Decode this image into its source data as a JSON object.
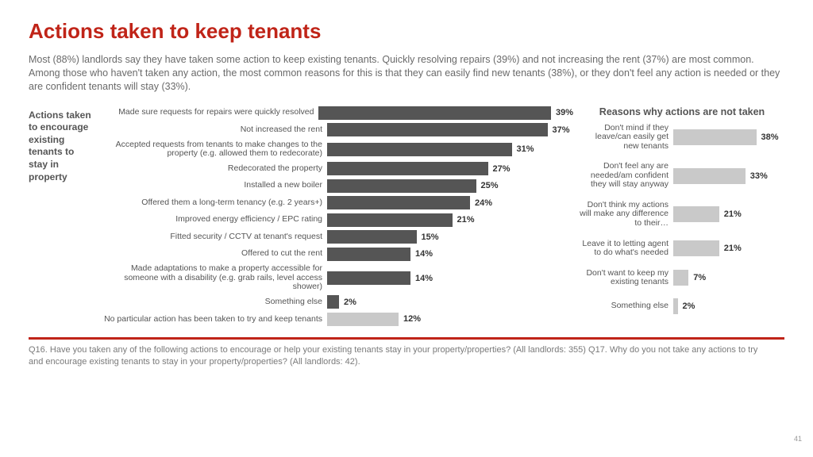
{
  "title": "Actions taken to keep tenants",
  "intro": "Most (88%) landlords say they have taken some action to keep existing tenants. Quickly resolving repairs (39%) and not increasing the rent (37%) are most common. Among those who haven't taken any action, the most common reasons for this is that they can easily find new tenants (38%), or they don't feel any action is needed or they are confident tenants will stay (33%).",
  "side_label": "Actions taken to encourage existing tenants to stay in property",
  "chart1": {
    "type": "bar-horizontal",
    "max": 40,
    "bar_color_dark": "#555555",
    "bar_color_light": "#c9c9c9",
    "rows": [
      {
        "label": "Made sure requests for repairs were quickly resolved",
        "value": 39,
        "color": "dark"
      },
      {
        "label": "Not increased the rent",
        "value": 37,
        "color": "dark"
      },
      {
        "label": "Accepted requests from tenants to make changes to the property (e.g. allowed them to redecorate)",
        "value": 31,
        "color": "dark"
      },
      {
        "label": "Redecorated the property",
        "value": 27,
        "color": "dark"
      },
      {
        "label": "Installed a new boiler",
        "value": 25,
        "color": "dark"
      },
      {
        "label": "Offered them a long-term tenancy (e.g. 2 years+)",
        "value": 24,
        "color": "dark"
      },
      {
        "label": "Improved energy efficiency / EPC rating",
        "value": 21,
        "color": "dark"
      },
      {
        "label": "Fitted security / CCTV at tenant's request",
        "value": 15,
        "color": "dark"
      },
      {
        "label": "Offered to cut the rent",
        "value": 14,
        "color": "dark"
      },
      {
        "label": "Made adaptations to make a property accessible for someone with a disability (e.g. grab rails, level access shower)",
        "value": 14,
        "color": "dark"
      },
      {
        "label": "Something else",
        "value": 2,
        "color": "dark"
      },
      {
        "label": "No particular action has been taken to try and keep tenants",
        "value": 12,
        "color": "light"
      }
    ]
  },
  "chart2": {
    "title": "Reasons why actions are not taken",
    "type": "bar-horizontal",
    "max": 40,
    "bar_color": "#c9c9c9",
    "rows": [
      {
        "label": "Don't mind if they leave/can easily get new tenants",
        "value": 38
      },
      {
        "label": "Don't feel any are needed/am confident they will stay anyway",
        "value": 33
      },
      {
        "label": "Don't think my actions will make any difference to their…",
        "value": 21
      },
      {
        "label": "Leave it to letting agent to do what's needed",
        "value": 21
      },
      {
        "label": "Don't want to keep my existing tenants",
        "value": 7
      },
      {
        "label": "Something else",
        "value": 2
      }
    ]
  },
  "footer": "Q16. Have you taken any of the following actions to encourage or help your existing tenants stay in your property/properties? (All landlords: 355) Q17. Why do you not take any actions to try and encourage existing tenants to stay in your property/properties? (All landlords: 42).",
  "page_number": "41",
  "colors": {
    "accent": "#c02418",
    "text": "#6a6a6a",
    "bar_dark": "#555555",
    "bar_light": "#c9c9c9"
  }
}
